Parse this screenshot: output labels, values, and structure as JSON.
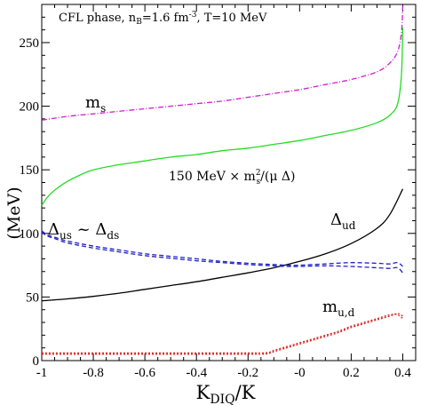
{
  "chart_data": {
    "type": "line",
    "xlabel": "K_DIQ/K",
    "ylabel": "(MeV)",
    "xlim": [
      -1.0,
      0.45
    ],
    "ylim": [
      0,
      280
    ],
    "xticks": [
      -1,
      -0.8,
      -0.6,
      -0.4,
      -0.2,
      0,
      0.2,
      0.4
    ],
    "xtick_labels": [
      "-1",
      "-0.8",
      "-0.6",
      "-0.4",
      "-0.2",
      "-0",
      "0.2",
      "0.4"
    ],
    "yticks": [
      0,
      50,
      100,
      150,
      200,
      250
    ],
    "ytick_labels": [
      "0",
      "50",
      "100",
      "150",
      "200",
      "250"
    ],
    "grid": false,
    "title_box": "CFL phase, n_B=1.6 fm^-3, T=10 MeV",
    "series": [
      {
        "key": "ms",
        "label": "m_s",
        "color": "#d020d0",
        "dash": "6,2,1,2",
        "x": [
          -1.0,
          -0.9,
          -0.8,
          -0.7,
          -0.6,
          -0.5,
          -0.4,
          -0.3,
          -0.2,
          -0.1,
          0.0,
          0.1,
          0.2,
          0.3,
          0.35,
          0.38,
          0.395,
          0.4
        ],
        "y": [
          189,
          192,
          194,
          196,
          198,
          200,
          202,
          204,
          207,
          210,
          213,
          217,
          221,
          227,
          234,
          243,
          258,
          279
        ]
      },
      {
        "key": "ratio",
        "label": "150 MeV × m_s^2/(μ Δ)",
        "color": "#22dd22",
        "dash": "",
        "x": [
          -1.0,
          -0.98,
          -0.95,
          -0.9,
          -0.85,
          -0.8,
          -0.7,
          -0.6,
          -0.5,
          -0.4,
          -0.3,
          -0.2,
          -0.1,
          0.0,
          0.1,
          0.2,
          0.3,
          0.35,
          0.38,
          0.395,
          0.4
        ],
        "y": [
          122,
          128,
          134,
          141,
          146,
          150,
          154,
          157,
          160,
          162,
          165,
          167,
          170,
          173,
          177,
          181,
          187,
          193,
          202,
          225,
          262
        ]
      },
      {
        "key": "dud",
        "label": "Δ_ud",
        "color": "#000000",
        "dash": "",
        "x": [
          -1.0,
          -0.9,
          -0.8,
          -0.7,
          -0.6,
          -0.5,
          -0.4,
          -0.3,
          -0.2,
          -0.1,
          0.0,
          0.1,
          0.2,
          0.3,
          0.35,
          0.4
        ],
        "y": [
          47,
          48.5,
          50.5,
          53,
          56,
          59,
          62,
          65.5,
          69,
          73,
          78,
          84,
          92,
          104,
          115,
          135
        ]
      },
      {
        "key": "dus",
        "label": "Δ_us ~ Δ_ds",
        "color": "#2020c8",
        "dash": "5,3",
        "x": [
          -1.0,
          -0.98,
          -0.95,
          -0.9,
          -0.8,
          -0.7,
          -0.6,
          -0.5,
          -0.4,
          -0.3,
          -0.2,
          -0.1,
          -0.05,
          0.0,
          0.1,
          0.2,
          0.3,
          0.35,
          0.38,
          0.4
        ],
        "y": [
          102,
          99,
          97,
          94,
          90,
          87,
          84,
          82,
          80,
          78,
          76.5,
          75.5,
          75,
          75,
          76,
          77,
          76.5,
          76,
          77,
          74
        ]
      },
      {
        "key": "dus2",
        "label": "",
        "color": "#2020c8",
        "dash": "5,3",
        "x": [
          -1.0,
          -0.98,
          -0.95,
          -0.9,
          -0.8,
          -0.7,
          -0.6,
          -0.5,
          -0.4,
          -0.3,
          -0.2,
          -0.1,
          -0.05,
          0.0,
          0.1,
          0.2,
          0.3,
          0.35,
          0.38,
          0.4
        ],
        "y": [
          101,
          98,
          96,
          92.5,
          88.5,
          85.5,
          82.5,
          80.5,
          78.5,
          77,
          75.5,
          74.5,
          74,
          74,
          74.5,
          74,
          73,
          72.5,
          73,
          69
        ]
      },
      {
        "key": "mud",
        "label": "m_u,d",
        "color": "#dd2020",
        "dash": "2,2",
        "x": [
          -1.0,
          -0.8,
          -0.6,
          -0.4,
          -0.2,
          -0.15,
          -0.12,
          -0.1,
          -0.05,
          0.0,
          0.05,
          0.1,
          0.15,
          0.2,
          0.25,
          0.3,
          0.35,
          0.38,
          0.4
        ],
        "y": [
          5,
          5,
          5,
          5,
          5,
          5,
          5.5,
          7,
          10,
          13,
          16,
          19,
          22,
          26,
          29,
          32,
          35,
          37,
          35
        ]
      },
      {
        "key": "mud2",
        "label": "",
        "color": "#dd2020",
        "dash": "2,2",
        "x": [
          -1.0,
          -0.8,
          -0.6,
          -0.4,
          -0.2,
          -0.15,
          -0.12,
          -0.1,
          -0.05,
          0.0,
          0.05,
          0.1,
          0.15,
          0.2,
          0.25,
          0.3,
          0.35,
          0.38,
          0.4
        ],
        "y": [
          6,
          6,
          6,
          6,
          6,
          6,
          6.5,
          8,
          11,
          14,
          17,
          20,
          23,
          27,
          30,
          33,
          36,
          36,
          33
        ]
      }
    ]
  }
}
